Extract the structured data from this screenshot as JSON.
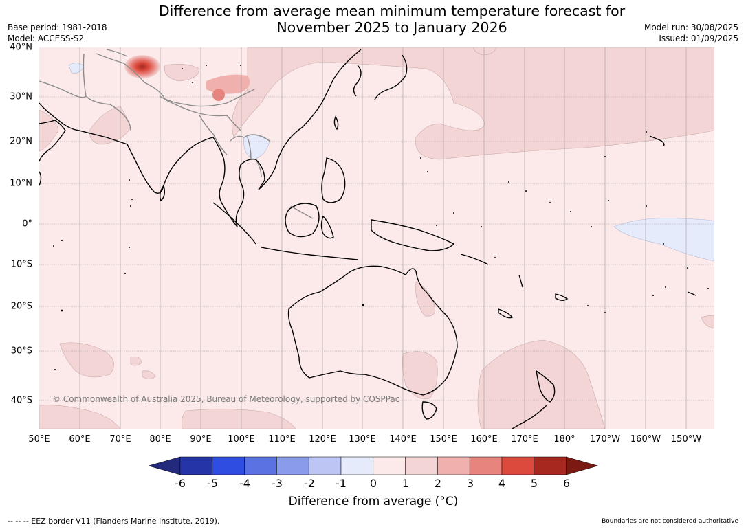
{
  "title": "Difference from average mean minimum temperature forecast for\nNovember 2025 to January 2026",
  "header": {
    "base_period": "Base period: 1981-2018",
    "model": "Model: ACCESS-S2",
    "model_run": "Model run: 30/08/2025",
    "issued": "Issued: 01/09/2025"
  },
  "map": {
    "lat_labels": [
      "40°N",
      "30°N",
      "20°N",
      "10°N",
      "0°",
      "10°S",
      "20°S",
      "30°S",
      "40°S"
    ],
    "lon_labels": [
      "50°E",
      "60°E",
      "70°E",
      "80°E",
      "90°E",
      "100°E",
      "110°E",
      "120°E",
      "130°E",
      "140°E",
      "150°E",
      "160°E",
      "170°E",
      "180°",
      "170°W",
      "160°W",
      "150°W"
    ],
    "copyright": "© Commonwealth of Australia 2025, Bureau of Meteorology, supported by COSPPac",
    "colors": {
      "background_anomaly": "#fbeae9",
      "ocean_warm_1_2": "#f4d5d5",
      "land_outline": "#000000",
      "border_grey": "#8c8c8c",
      "grid": "#999999"
    }
  },
  "legend": {
    "ticks": [
      "-6",
      "-5",
      "-4",
      "-3",
      "-2",
      "-1",
      "0",
      "1",
      "2",
      "3",
      "4",
      "5",
      "6"
    ],
    "colors": [
      "#232a7c",
      "#2535a8",
      "#2f4de0",
      "#5b73e2",
      "#8a9beb",
      "#bcc5f3",
      "#e6ebfb",
      "#fbeae9",
      "#f4d5d5",
      "#efb0ae",
      "#e8847e",
      "#dc4a3d",
      "#a6281f",
      "#7a1a13"
    ],
    "label": "Difference from average (°C)"
  },
  "footer": {
    "eez_note": "--  --  -- EEZ border V11 (Flanders Marine Institute, 2019).",
    "disclaimer": "Boundaries are not considered authoritative"
  }
}
